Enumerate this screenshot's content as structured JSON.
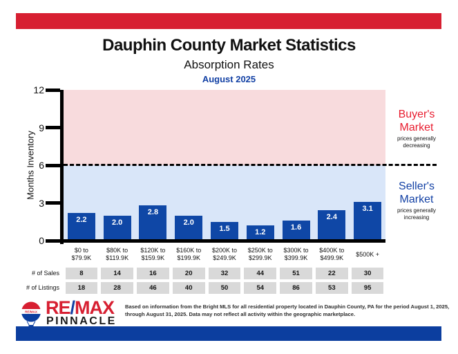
{
  "page": {
    "title": "Dauphin County Market Statistics",
    "subtitle": "Absorption Rates",
    "period": "August 2025"
  },
  "chart_data": {
    "type": "bar",
    "title": "Dauphin County Market Statistics",
    "subtitle": "Absorption Rates",
    "period": "August 2025",
    "ylabel": "Months Inventory",
    "ylim": [
      0,
      12
    ],
    "yticks": [
      12,
      9,
      6,
      3,
      0
    ],
    "threshold_line": 6,
    "grid": false,
    "bar_color": "#0F47A6",
    "categories": [
      {
        "line1": "$0 to",
        "line2": "$79.9K"
      },
      {
        "line1": "$80K to",
        "line2": "$119.9K"
      },
      {
        "line1": "$120K to",
        "line2": "$159.9K"
      },
      {
        "line1": "$160K to",
        "line2": "$199.9K"
      },
      {
        "line1": "$200K to",
        "line2": "$249.9K"
      },
      {
        "line1": "$250K to",
        "line2": "$299.9K"
      },
      {
        "line1": "$300K to",
        "line2": "$399.9K"
      },
      {
        "line1": "$400K to",
        "line2": "$499.9K"
      },
      {
        "line1": "$500K +",
        "line2": ""
      }
    ],
    "values": [
      2.2,
      2.0,
      2.8,
      2.0,
      1.5,
      1.2,
      1.6,
      2.4,
      3.1
    ],
    "value_labels": [
      "2.2",
      "2.0",
      "2.8",
      "2.0",
      "1.5",
      "1.2",
      "1.6",
      "2.4",
      "3.1"
    ],
    "zones": {
      "buyer": {
        "title_line1": "Buyer's",
        "title_line2": "Market",
        "sub_line1": "prices generally",
        "sub_line2": "decreasing",
        "text_color": "#E81C2E",
        "bg_color": "#F8DBDD"
      },
      "seller": {
        "title_line1": "Seller's",
        "title_line2": "Market",
        "sub_line1": "prices generally",
        "sub_line2": "increasing",
        "text_color": "#1240A4",
        "bg_color": "#D9E6F9"
      }
    },
    "table": {
      "rows": [
        {
          "label": "# of Sales",
          "values": [
            "8",
            "14",
            "16",
            "20",
            "32",
            "44",
            "51",
            "22",
            "30"
          ]
        },
        {
          "label": "# of Listings",
          "values": [
            "18",
            "28",
            "46",
            "40",
            "50",
            "54",
            "86",
            "53",
            "95"
          ]
        }
      ]
    }
  },
  "logo": {
    "balloon_text": "RE/MAX",
    "brand_re": "RE",
    "brand_slash": "/",
    "brand_max": "MAX",
    "brand_sub": "PINNACLE"
  },
  "footer": {
    "disclaimer": "Based on information from the Bright MLS for all residential property located in Dauphin County, PA for the period August 1, 2025, through August 31, 2025.  Data may not reflect all activity within the geographic marketplace."
  },
  "colors": {
    "top_band": "#D71F31",
    "bottom_band": "#0C3E9F",
    "period_text": "#1240A4",
    "table_cell_bg": "#D9D9D9"
  }
}
